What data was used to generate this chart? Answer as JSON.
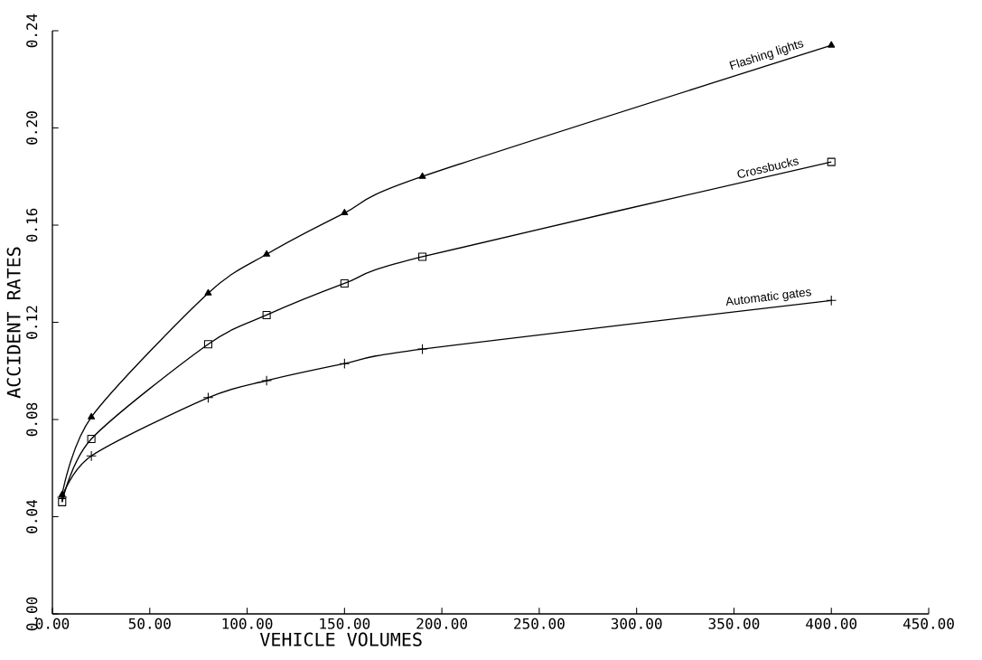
{
  "chart_data": {
    "type": "line",
    "xlabel": "VEHICLE VOLUMES",
    "ylabel": "ACCIDENT RATES",
    "x": [
      5,
      20,
      80,
      110,
      150,
      190,
      400
    ],
    "series": [
      {
        "name": "Flashing lights",
        "color": "#000000",
        "marker": "triangle",
        "values": [
          0.049,
          0.081,
          0.132,
          0.148,
          0.165,
          0.18,
          0.234
        ]
      },
      {
        "name": "Crossbucks",
        "color": "#000000",
        "marker": "square",
        "values": [
          0.046,
          0.072,
          0.111,
          0.123,
          0.136,
          0.147,
          0.186
        ]
      },
      {
        "name": "Automatic gates",
        "color": "#000000",
        "marker": "cross",
        "values": [
          0.048,
          0.065,
          0.089,
          0.096,
          0.103,
          0.109,
          0.129
        ]
      }
    ],
    "xlim": [
      0,
      450
    ],
    "ylim": [
      0,
      0.24
    ],
    "xticks": [
      {
        "value": 0,
        "label": "0.00"
      },
      {
        "value": 50,
        "label": "50.00"
      },
      {
        "value": 100,
        "label": "100.00"
      },
      {
        "value": 150,
        "label": "150.00"
      },
      {
        "value": 200,
        "label": "200.00"
      },
      {
        "value": 250,
        "label": "250.00"
      },
      {
        "value": 300,
        "label": "300.00"
      },
      {
        "value": 350,
        "label": "350.00"
      },
      {
        "value": 400,
        "label": "400.00"
      },
      {
        "value": 450,
        "label": "450.00"
      }
    ],
    "yticks": [
      {
        "value": 0,
        "label": "0.00"
      },
      {
        "value": 0.04,
        "label": "0.04"
      },
      {
        "value": 0.08,
        "label": "0.08"
      },
      {
        "value": 0.12,
        "label": "0.12"
      },
      {
        "value": 0.16,
        "label": "0.16"
      },
      {
        "value": 0.2,
        "label": "0.20"
      },
      {
        "value": 0.24,
        "label": "0.24"
      }
    ],
    "grid": false,
    "legend": false,
    "line_style": "solid"
  }
}
